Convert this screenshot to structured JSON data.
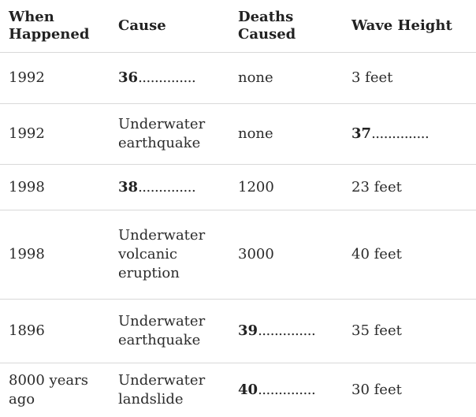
{
  "headers": {
    "when": [
      "When",
      "Happened"
    ],
    "cause": "Cause",
    "deaths": [
      "Deaths",
      "Caused"
    ],
    "wave": "Wave Height"
  },
  "dots": "..............",
  "rows": [
    {
      "when": [
        "1992"
      ],
      "cause": {
        "question": "36"
      },
      "deaths": {
        "text": "none"
      },
      "wave": {
        "text": "3 feet"
      }
    },
    {
      "when": [
        "1992"
      ],
      "cause": {
        "lines": [
          "Underwater",
          "earthquake"
        ]
      },
      "deaths": {
        "text": "none"
      },
      "wave": {
        "question": "37"
      }
    },
    {
      "when": [
        "1998"
      ],
      "cause": {
        "question": "38"
      },
      "deaths": {
        "text": "1200"
      },
      "wave": {
        "text": "23 feet"
      }
    },
    {
      "when": [
        "1998"
      ],
      "cause": {
        "lines": [
          "Underwater",
          "volcanic",
          "eruption"
        ]
      },
      "deaths": {
        "text": "3000"
      },
      "wave": {
        "text": "40 feet"
      }
    },
    {
      "when": [
        "1896"
      ],
      "cause": {
        "lines": [
          "Underwater",
          "earthquake"
        ]
      },
      "deaths": {
        "question": "39"
      },
      "wave": {
        "text": "35 feet"
      }
    },
    {
      "when": [
        "8000 years",
        "ago"
      ],
      "cause": {
        "lines": [
          "Underwater",
          "landslide"
        ]
      },
      "deaths": {
        "question": "40"
      },
      "wave": {
        "text": "30 feet"
      }
    }
  ]
}
